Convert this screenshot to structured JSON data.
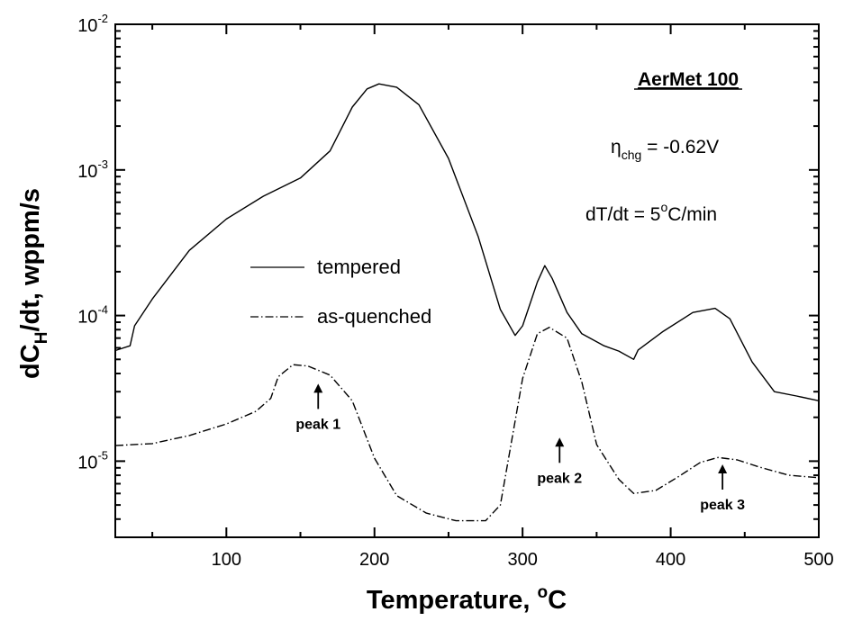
{
  "chart_data": {
    "type": "line",
    "x_scale": "linear",
    "y_scale": "log",
    "xlim": [
      25,
      500
    ],
    "ylim": [
      3e-06,
      0.01
    ],
    "grid": false,
    "xlabel": {
      "main": "Temperature, ",
      "sup": "o",
      "tail": "C"
    },
    "ylabel": {
      "main": "dC",
      "sub": "H",
      "tail": "/dt, wppm/s"
    },
    "x_ticks": [
      "100",
      "200",
      "300",
      "400",
      "500"
    ],
    "y_ticks": [
      {
        "base": "10",
        "exp": "-5"
      },
      {
        "base": "10",
        "exp": "-4"
      },
      {
        "base": "10",
        "exp": "-3"
      },
      {
        "base": "10",
        "exp": "-2"
      }
    ],
    "annotations": {
      "title": "AerMet 100",
      "eta": {
        "main": "η",
        "sub": "chg",
        "tail": " = -0.62V"
      },
      "rate": {
        "main": "dT/dt = 5",
        "sup": "o",
        "tail": "C/min"
      }
    },
    "peaks": [
      {
        "label": "peak 1",
        "x": 162,
        "y": 3.4e-05
      },
      {
        "label": "peak 2",
        "x": 325,
        "y": 1.45e-05
      },
      {
        "label": "peak 3",
        "x": 435,
        "y": 9.5e-06
      }
    ],
    "series": [
      {
        "name": "tempered",
        "style": "solid",
        "color": "#000000",
        "points": [
          [
            25,
            5.75e-05
          ],
          [
            35,
            6.2e-05
          ],
          [
            38,
            8.5e-05
          ],
          [
            50,
            0.00013
          ],
          [
            75,
            0.00028
          ],
          [
            100,
            0.00046
          ],
          [
            125,
            0.00066
          ],
          [
            150,
            0.00088
          ],
          [
            170,
            0.00135
          ],
          [
            185,
            0.0027
          ],
          [
            195,
            0.0036
          ],
          [
            203,
            0.0039
          ],
          [
            215,
            0.0037
          ],
          [
            230,
            0.0028
          ],
          [
            250,
            0.0012
          ],
          [
            270,
            0.00035
          ],
          [
            285,
            0.00011
          ],
          [
            295,
            7.3e-05
          ],
          [
            300,
            8.5e-05
          ],
          [
            310,
            0.00017
          ],
          [
            315,
            0.00022
          ],
          [
            320,
            0.00018
          ],
          [
            330,
            0.000105
          ],
          [
            340,
            7.5e-05
          ],
          [
            355,
            6.2e-05
          ],
          [
            365,
            5.7e-05
          ],
          [
            375,
            5e-05
          ],
          [
            378,
            5.8e-05
          ],
          [
            395,
            7.8e-05
          ],
          [
            415,
            0.000105
          ],
          [
            430,
            0.000112
          ],
          [
            440,
            9.5e-05
          ],
          [
            455,
            4.8e-05
          ],
          [
            470,
            3e-05
          ],
          [
            485,
            2.8e-05
          ],
          [
            500,
            2.6e-05
          ]
        ]
      },
      {
        "name": "as-quenched",
        "style": "dashdot",
        "color": "#000000",
        "points": [
          [
            25,
            1.28e-05
          ],
          [
            50,
            1.32e-05
          ],
          [
            75,
            1.5e-05
          ],
          [
            100,
            1.8e-05
          ],
          [
            120,
            2.2e-05
          ],
          [
            130,
            2.7e-05
          ],
          [
            135,
            3.8e-05
          ],
          [
            145,
            4.6e-05
          ],
          [
            155,
            4.5e-05
          ],
          [
            170,
            3.9e-05
          ],
          [
            185,
            2.6e-05
          ],
          [
            200,
            1.05e-05
          ],
          [
            215,
            5.8e-06
          ],
          [
            235,
            4.4e-06
          ],
          [
            255,
            3.9e-06
          ],
          [
            275,
            3.9e-06
          ],
          [
            285,
            5e-06
          ],
          [
            300,
            3.7e-05
          ],
          [
            310,
            7.5e-05
          ],
          [
            318,
            8.3e-05
          ],
          [
            330,
            7e-05
          ],
          [
            340,
            3.5e-05
          ],
          [
            350,
            1.3e-05
          ],
          [
            365,
            7.5e-06
          ],
          [
            375,
            6e-06
          ],
          [
            390,
            6.3e-06
          ],
          [
            405,
            7.8e-06
          ],
          [
            420,
            9.8e-06
          ],
          [
            432,
            1.06e-05
          ],
          [
            445,
            1.02e-05
          ],
          [
            460,
            9.1e-06
          ],
          [
            480,
            8e-06
          ],
          [
            500,
            7.7e-06
          ]
        ]
      }
    ]
  }
}
